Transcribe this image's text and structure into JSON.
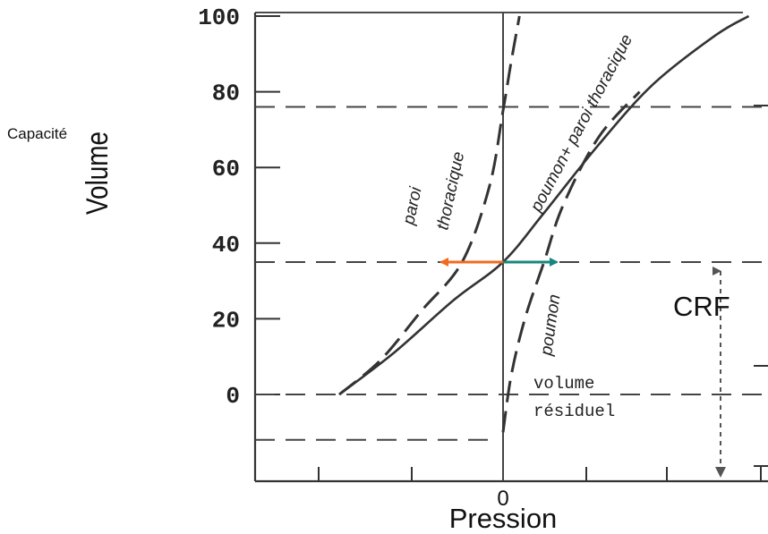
{
  "chart_data": {
    "type": "line",
    "title": "",
    "ylabel": "Volume",
    "xlabel": "Pression",
    "side_label": "Capacité",
    "y_ticks": [
      100,
      80,
      60,
      40,
      20,
      0
    ],
    "x_tick_labels": [
      "0"
    ],
    "ylim": [
      -12,
      100
    ],
    "reference_lines": {
      "capacite_volume": 76,
      "crf_volume": 35,
      "residual_volume": -12,
      "zero_volume": 0
    },
    "series": [
      {
        "name": "paroi thoracique",
        "style": "dashed",
        "points": [
          [
            -60,
            0
          ],
          [
            -45,
            9
          ],
          [
            -30,
            22
          ],
          [
            -15,
            35
          ],
          [
            -5,
            55
          ],
          [
            0,
            75
          ],
          [
            3,
            88
          ],
          [
            6,
            100
          ]
        ]
      },
      {
        "name": "poumon + paroi thoracique",
        "style": "solid",
        "points": [
          [
            -60,
            0
          ],
          [
            -40,
            11
          ],
          [
            -18,
            25
          ],
          [
            0,
            35
          ],
          [
            15,
            48
          ],
          [
            35,
            66
          ],
          [
            55,
            82
          ],
          [
            78,
            95
          ],
          [
            90,
            100
          ]
        ]
      },
      {
        "name": "poumon",
        "style": "dashed",
        "points": [
          [
            0,
            -10
          ],
          [
            3,
            5
          ],
          [
            8,
            20
          ],
          [
            15,
            35
          ],
          [
            22,
            50
          ],
          [
            35,
            68
          ],
          [
            50,
            80
          ]
        ]
      }
    ],
    "annotations": {
      "paroi_label_1": "paroi",
      "paroi_label_2": "thoracique",
      "poumon_label": "poumon",
      "combined_label": "poumon+ paroi thoracique",
      "residual_1": "volume",
      "residual_2": "résiduel",
      "crf": "CRF"
    },
    "arrows": [
      {
        "name": "elastic recoil paroi",
        "color": "#f26b1d",
        "direction": "left"
      },
      {
        "name": "elastic recoil poumon",
        "color": "#17867e",
        "direction": "right"
      }
    ],
    "grid": false
  }
}
